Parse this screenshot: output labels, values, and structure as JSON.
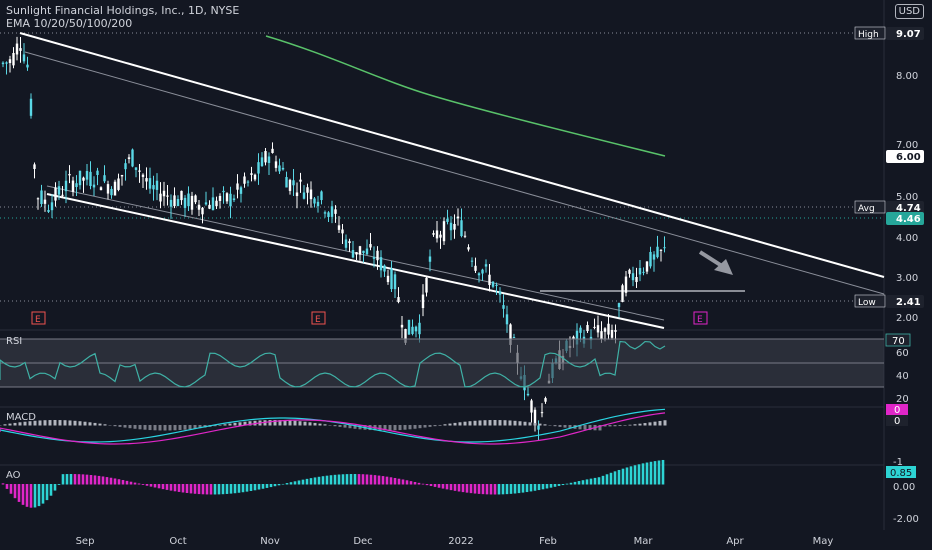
{
  "header": {
    "title": "Sunlight Financial Holdings, Inc., 1D, NYSE",
    "indicator": "EMA 10/20/50/100/200",
    "currency": "USD"
  },
  "panes": {
    "rsi": "RSI",
    "macd": "MACD",
    "ao": "AO"
  },
  "colors": {
    "background": "#131722",
    "up": "#26a69a",
    "down": "#ef5350",
    "candle": "#5ad8e6",
    "ema": "#59c26a",
    "rsi": "#3fb1a6",
    "macd": "#2ad4e2",
    "signal": "#e026c8",
    "ao_up": "#2dd4d4",
    "ao_down": "#e026c8"
  },
  "chart_data": {
    "type": "candlestick",
    "x_ticks": [
      "Sep",
      "Oct",
      "Nov",
      "Dec",
      "2022",
      "Feb",
      "Mar",
      "Apr",
      "May"
    ],
    "y_ticks": [
      "8.00",
      "7.00",
      "6.00",
      "5.00",
      "4.00",
      "3.00",
      "2.00"
    ],
    "y_scale": "log",
    "price_labels": [
      {
        "label": "High",
        "value": "9.07"
      },
      {
        "label": "",
        "value": "6.00"
      },
      {
        "label": "Avg",
        "value": "4.74"
      },
      {
        "label": "",
        "value": "4.46"
      },
      {
        "label": "Low",
        "value": "2.41"
      }
    ],
    "earnings_markers": [
      "E",
      "E",
      "E"
    ],
    "rsi": {
      "ticks": [
        "60",
        "40",
        "20"
      ],
      "current": "70"
    },
    "macd": {
      "values": [
        "0",
        "0"
      ],
      "ticks": [
        "-1"
      ]
    },
    "ao": {
      "current": "0.85",
      "ticks": [
        "0.00",
        "-2.00"
      ]
    }
  }
}
